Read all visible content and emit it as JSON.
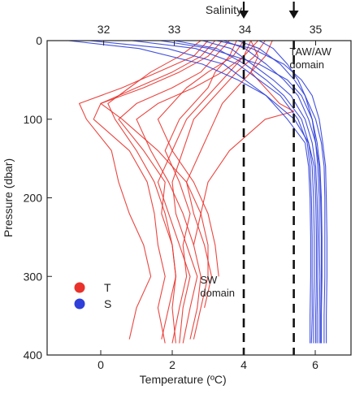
{
  "chart_data": {
    "type": "line",
    "title": "",
    "xlabel": "Temperature (ºC)",
    "x2label": "Salinity",
    "ylabel": "Pressure (dbar)",
    "xlim": [
      -1.5,
      7.0
    ],
    "x2lim": [
      31.2,
      35.5
    ],
    "ylim": [
      0,
      400
    ],
    "y_inverted": true,
    "x_ticks": [
      0,
      2,
      4,
      6
    ],
    "x2_ticks": [
      32,
      33,
      34,
      35
    ],
    "y_ticks": [
      0,
      100,
      200,
      300,
      400
    ],
    "grid": false,
    "legend": {
      "placement": "lower-left",
      "entries": [
        {
          "label": "T",
          "color": "#e8322b"
        },
        {
          "label": "S",
          "color": "#2f3fd9"
        }
      ]
    },
    "reference_lines": [
      {
        "axis": "temperature",
        "value": 4.0,
        "style": "dashed",
        "arrow": true
      },
      {
        "axis": "temperature",
        "value": 5.4,
        "style": "dashed",
        "arrow": true
      }
    ],
    "annotations": [
      {
        "lines": [
          "TAW/AW",
          "domain"
        ],
        "near_temperature": 5.6,
        "near_pressure": 25
      },
      {
        "lines": [
          "SW",
          "domain"
        ],
        "near_temperature": 3.1,
        "near_pressure": 315
      }
    ],
    "series": [
      {
        "name": "T",
        "axis": "temperature",
        "color": "#e8322b",
        "profiles": [
          {
            "pressure": [
              0,
              20,
              40,
              60,
              80,
              100,
              140,
              180,
              220,
              260,
              300,
              340,
              380
            ],
            "values": [
              3.0,
              2.6,
              1.6,
              0.6,
              -0.6,
              -0.4,
              0.3,
              0.5,
              0.8,
              1.2,
              1.4,
              1.0,
              0.8
            ]
          },
          {
            "pressure": [
              0,
              20,
              40,
              60,
              80,
              100,
              140,
              180,
              220,
              260,
              300,
              340,
              385
            ],
            "values": [
              3.4,
              3.0,
              2.2,
              1.2,
              0.0,
              -0.2,
              0.8,
              1.3,
              1.5,
              1.6,
              1.8,
              1.6,
              1.8
            ]
          },
          {
            "pressure": [
              0,
              20,
              40,
              60,
              80,
              100,
              140,
              180,
              220,
              260,
              300,
              340,
              385
            ],
            "values": [
              3.6,
              3.2,
              2.8,
              2.0,
              1.0,
              0.5,
              1.2,
              1.8,
              1.7,
              2.0,
              2.1,
              2.0,
              2.1
            ]
          },
          {
            "pressure": [
              0,
              20,
              40,
              60,
              80,
              100,
              140,
              180,
              220,
              260,
              300,
              340,
              385
            ],
            "values": [
              3.8,
              3.6,
              3.2,
              3.0,
              2.6,
              2.2,
              1.8,
              2.2,
              2.5,
              2.3,
              2.4,
              2.2,
              2.0
            ]
          },
          {
            "pressure": [
              0,
              20,
              40,
              60,
              80,
              100,
              140,
              180,
              220,
              260,
              300,
              340,
              385
            ],
            "values": [
              4.2,
              4.0,
              3.6,
              3.2,
              2.8,
              2.4,
              2.0,
              1.6,
              1.9,
              2.2,
              2.5,
              2.3,
              2.2
            ]
          },
          {
            "pressure": [
              0,
              20,
              40,
              60,
              80,
              100,
              140,
              180,
              220,
              260,
              300,
              340,
              385
            ],
            "values": [
              4.6,
              4.3,
              3.8,
              3.4,
              3.0,
              2.6,
              2.3,
              2.0,
              2.1,
              2.4,
              2.7,
              2.5,
              2.3
            ]
          },
          {
            "pressure": [
              0,
              20,
              40,
              60,
              80,
              100,
              140,
              180,
              220,
              260,
              300,
              340,
              380
            ],
            "values": [
              4.4,
              4.0,
              3.4,
              2.6,
              1.6,
              1.0,
              1.4,
              1.9,
              2.3,
              2.6,
              2.8,
              2.7,
              2.5
            ]
          },
          {
            "pressure": [
              0,
              20,
              40,
              60,
              80,
              100,
              140,
              180,
              220,
              260,
              300,
              340,
              380
            ],
            "values": [
              3.2,
              2.8,
              2.0,
              1.0,
              0.0,
              0.6,
              1.6,
              2.4,
              2.8,
              3.0,
              3.0,
              2.8,
              2.6
            ]
          },
          {
            "pressure": [
              0,
              20,
              40,
              60,
              80,
              100,
              140,
              180,
              220,
              260,
              300,
              340
            ],
            "values": [
              4.8,
              4.6,
              4.2,
              3.8,
              3.4,
              3.2,
              2.8,
              2.4,
              2.6,
              2.9,
              3.1,
              2.9
            ]
          },
          {
            "pressure": [
              0,
              20,
              40,
              60,
              80,
              100,
              140,
              180,
              220,
              260,
              300
            ],
            "values": [
              4.0,
              3.7,
              3.0,
              2.4,
              2.0,
              1.6,
              2.0,
              2.6,
              3.0,
              3.2,
              3.3
            ]
          },
          {
            "pressure": [
              0,
              20,
              40,
              60,
              80,
              90,
              100,
              140,
              180,
              220,
              260
            ],
            "values": [
              4.2,
              4.4,
              4.2,
              4.6,
              5.0,
              5.4,
              4.6,
              3.6,
              3.0,
              2.8,
              2.6
            ]
          },
          {
            "pressure": [
              0,
              20,
              40,
              60,
              80,
              100,
              140,
              180,
              220,
              260,
              300,
              340,
              380
            ],
            "values": [
              2.8,
              2.2,
              1.4,
              0.8,
              0.2,
              0.4,
              1.0,
              1.5,
              1.8,
              2.0,
              2.1,
              1.9,
              1.7
            ]
          }
        ]
      },
      {
        "name": "S",
        "axis": "salinity",
        "color": "#2f3fd9",
        "profiles": [
          {
            "pressure": [
              0,
              10,
              30,
              50,
              70,
              100,
              130,
              160,
              200,
              250,
              300,
              350,
              385
            ],
            "values": [
              31.8,
              32.9,
              33.7,
              34.0,
              34.3,
              34.6,
              34.85,
              34.9,
              34.92,
              34.93,
              34.93,
              34.92,
              34.92
            ]
          },
          {
            "pressure": [
              0,
              10,
              30,
              50,
              70,
              100,
              130,
              160,
              200,
              250,
              300,
              350,
              385
            ],
            "values": [
              32.4,
              33.3,
              33.9,
              34.2,
              34.5,
              34.75,
              34.88,
              34.92,
              34.94,
              34.95,
              34.95,
              34.95,
              34.94
            ]
          },
          {
            "pressure": [
              0,
              10,
              30,
              50,
              70,
              100,
              130,
              160,
              200,
              250,
              300,
              350,
              385
            ],
            "values": [
              33.0,
              33.6,
              34.0,
              34.3,
              34.55,
              34.8,
              34.9,
              34.95,
              34.97,
              34.98,
              34.98,
              34.97,
              34.97
            ]
          },
          {
            "pressure": [
              0,
              10,
              30,
              50,
              70,
              100,
              130,
              160,
              200,
              250,
              300,
              350,
              385
            ],
            "values": [
              33.4,
              33.8,
              34.1,
              34.4,
              34.65,
              34.85,
              34.95,
              35.0,
              35.02,
              35.03,
              35.03,
              35.02,
              35.02
            ]
          },
          {
            "pressure": [
              0,
              10,
              30,
              50,
              70,
              100,
              130,
              160,
              200,
              250,
              300,
              350,
              385
            ],
            "values": [
              33.7,
              34.0,
              34.3,
              34.55,
              34.75,
              34.9,
              35.0,
              35.05,
              35.07,
              35.08,
              35.08,
              35.07,
              35.07
            ]
          },
          {
            "pressure": [
              0,
              10,
              30,
              50,
              70,
              100,
              130,
              160,
              200,
              250,
              300,
              350,
              385
            ],
            "values": [
              33.9,
              34.2,
              34.5,
              34.7,
              34.85,
              35.0,
              35.08,
              35.12,
              35.13,
              35.13,
              35.13,
              35.12,
              35.12
            ]
          },
          {
            "pressure": [
              0,
              10,
              30,
              50,
              70,
              100,
              130,
              160,
              200,
              250,
              300,
              350,
              385
            ],
            "values": [
              33.6,
              34.1,
              34.55,
              34.8,
              34.95,
              35.05,
              35.1,
              35.14,
              35.15,
              35.16,
              35.16,
              35.15,
              35.15
            ]
          },
          {
            "pressure": [
              0,
              10,
              30,
              50,
              70,
              100,
              130,
              160,
              200,
              250,
              300,
              350,
              385
            ],
            "values": [
              34.2,
              34.4,
              34.6,
              34.75,
              34.85,
              34.95,
              35.0,
              35.03,
              35.05,
              35.05,
              35.06,
              35.05,
              35.05
            ]
          },
          {
            "pressure": [
              0,
              10,
              30,
              50,
              70,
              100,
              130,
              160,
              200,
              250,
              300,
              350,
              385
            ],
            "values": [
              32.8,
              33.5,
              34.2,
              34.6,
              34.8,
              34.95,
              35.02,
              35.06,
              35.08,
              35.09,
              35.09,
              35.08,
              35.08
            ]
          },
          {
            "pressure": [
              0,
              10,
              30,
              50,
              70,
              100,
              130,
              160,
              200,
              250,
              300,
              350,
              385
            ],
            "values": [
              31.5,
              32.5,
              33.4,
              33.9,
              34.3,
              34.7,
              34.9,
              34.98,
              35.0,
              35.01,
              35.01,
              35.0,
              35.0
            ]
          }
        ]
      }
    ]
  }
}
